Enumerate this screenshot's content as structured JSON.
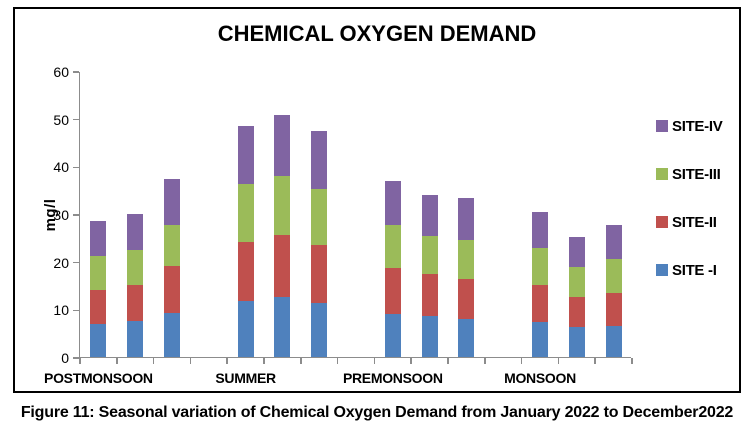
{
  "title": "CHEMICAL OXYGEN DEMAND",
  "caption": "Figure 11: Seasonal variation of Chemical Oxygen Demand from January 2022 to December2022",
  "chart_data": {
    "type": "bar",
    "stacked": true,
    "title": "CHEMICAL OXYGEN DEMAND",
    "xlabel": "",
    "ylabel": "mg/l",
    "ylim": [
      0,
      60
    ],
    "yticks": [
      0,
      10,
      20,
      30,
      40,
      50,
      60
    ],
    "grid": false,
    "legend_position": "right",
    "categories": [
      "POSTMONSOON",
      "SUMMER",
      "PREMONSOON",
      "MONSOON"
    ],
    "bars_per_category": 3,
    "series": [
      {
        "name": "SITE -I",
        "color": "#4F81BD",
        "values": [
          [
            7.0,
            7.5,
            9.2
          ],
          [
            11.8,
            12.5,
            11.4
          ],
          [
            9.0,
            8.5,
            8.0
          ],
          [
            7.4,
            6.3,
            6.6
          ]
        ]
      },
      {
        "name": "SITE-II",
        "color": "#C0504D",
        "values": [
          [
            7.0,
            7.7,
            9.9
          ],
          [
            12.4,
            13.0,
            12.0
          ],
          [
            9.6,
            8.9,
            8.3
          ],
          [
            7.8,
            6.2,
            6.9
          ]
        ]
      },
      {
        "name": "SITE-III",
        "color": "#9BBB59",
        "values": [
          [
            7.1,
            7.2,
            8.7
          ],
          [
            12.1,
            12.5,
            11.8
          ],
          [
            9.0,
            8.0,
            8.2
          ],
          [
            7.6,
            6.3,
            7.0
          ]
        ]
      },
      {
        "name": "SITE-IV",
        "color": "#8064A2",
        "values": [
          [
            7.5,
            7.7,
            9.5
          ],
          [
            12.2,
            12.7,
            12.2
          ],
          [
            9.3,
            8.6,
            8.8
          ],
          [
            7.7,
            6.4,
            7.3
          ]
        ]
      }
    ],
    "totals": [
      [
        28.6,
        30.1,
        37.3
      ],
      [
        48.5,
        50.7,
        47.4
      ],
      [
        36.9,
        34.0,
        33.3
      ],
      [
        30.5,
        25.2,
        27.8
      ]
    ],
    "legend": [
      {
        "label": "SITE-IV",
        "color": "#8064A2"
      },
      {
        "label": "SITE-III",
        "color": "#9BBB59"
      },
      {
        "label": "SITE-II",
        "color": "#C0504D"
      },
      {
        "label": "SITE -I",
        "color": "#4F81BD"
      }
    ],
    "colors": {
      "axis": "#8c8c8c",
      "text": "#000000",
      "background": "#ffffff"
    }
  }
}
